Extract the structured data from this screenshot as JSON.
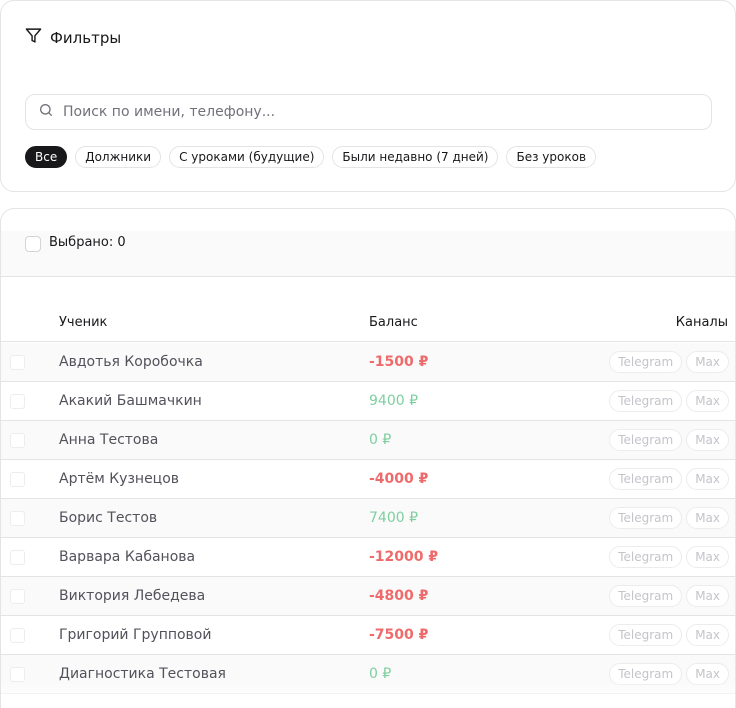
{
  "filters": {
    "title": "Фильтры",
    "search_placeholder": "Поиск по имени, телефону...",
    "chips": [
      {
        "label": "Все",
        "active": true
      },
      {
        "label": "Должники",
        "active": false
      },
      {
        "label": "С уроками (будущие)",
        "active": false
      },
      {
        "label": "Были недавно (7 дней)",
        "active": false
      },
      {
        "label": "Без уроков",
        "active": false
      }
    ]
  },
  "table": {
    "selected_label": "Выбрано: 0",
    "columns": {
      "name": "Ученик",
      "balance": "Баланс",
      "channels": "Каналы"
    },
    "rows": [
      {
        "name": "Авдотья Коробочка",
        "balance": "-1500 ₽",
        "negative": true,
        "channels": [
          "Telegram",
          "Max"
        ]
      },
      {
        "name": "Акакий Башмачкин",
        "balance": "9400 ₽",
        "negative": false,
        "channels": [
          "Telegram",
          "Max"
        ]
      },
      {
        "name": "Анна Тестова",
        "balance": "0 ₽",
        "negative": false,
        "channels": [
          "Telegram",
          "Max"
        ]
      },
      {
        "name": "Артём Кузнецов",
        "balance": "-4000 ₽",
        "negative": true,
        "channels": [
          "Telegram",
          "Max"
        ]
      },
      {
        "name": "Борис Тестов",
        "balance": "7400 ₽",
        "negative": false,
        "channels": [
          "Telegram",
          "Max"
        ]
      },
      {
        "name": "Варвара Кабанова",
        "balance": "-12000 ₽",
        "negative": true,
        "channels": [
          "Telegram",
          "Max"
        ]
      },
      {
        "name": "Виктория Лебедева",
        "balance": "-4800 ₽",
        "negative": true,
        "channels": [
          "Telegram",
          "Max"
        ]
      },
      {
        "name": "Григорий Групповой",
        "balance": "-7500 ₽",
        "negative": true,
        "channels": [
          "Telegram",
          "Max"
        ]
      },
      {
        "name": "Диагностика Тестовая",
        "balance": "0 ₽",
        "negative": false,
        "channels": [
          "Telegram",
          "Max"
        ]
      }
    ]
  },
  "colors": {
    "negative": "#ef6b6b",
    "positive": "#7dcf9f",
    "active_chip": "#18181b"
  }
}
